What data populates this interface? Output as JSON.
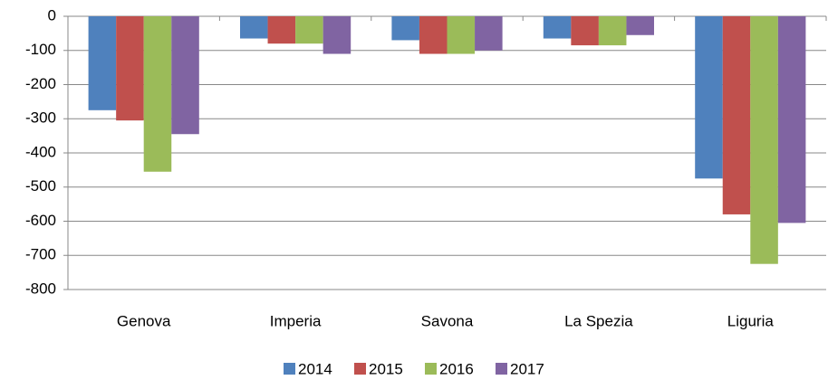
{
  "chart_data": {
    "type": "bar",
    "categories": [
      "Genova",
      "Imperia",
      "Savona",
      "La Spezia",
      "Liguria"
    ],
    "series": [
      {
        "name": "2014",
        "color": "#4f81bd",
        "values": [
          -275,
          -65,
          -70,
          -65,
          -475
        ]
      },
      {
        "name": "2015",
        "color": "#c0504d",
        "values": [
          -305,
          -80,
          -110,
          -85,
          -580
        ]
      },
      {
        "name": "2016",
        "color": "#9bbb59",
        "values": [
          -455,
          -80,
          -110,
          -85,
          -725
        ]
      },
      {
        "name": "2017",
        "color": "#8064a2",
        "values": [
          -345,
          -110,
          -100,
          -55,
          -605
        ]
      }
    ],
    "ylim": [
      -800,
      0
    ],
    "yticks": [
      0,
      -100,
      -200,
      -300,
      -400,
      -500,
      -600,
      -700,
      -800
    ],
    "grid": true,
    "legend": "bottom"
  }
}
